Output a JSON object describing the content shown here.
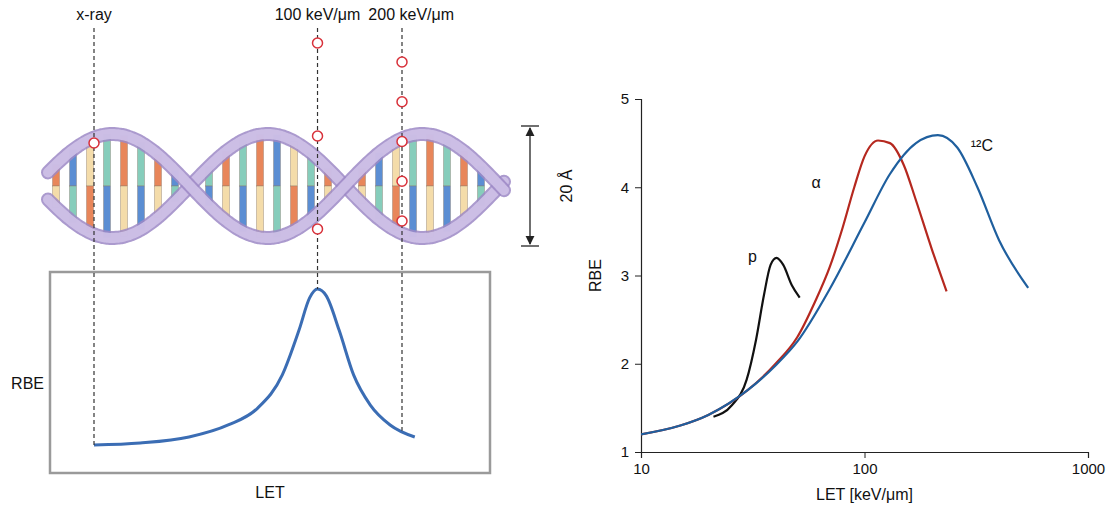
{
  "diagram": {
    "markers": [
      {
        "label": "x-ray",
        "let": 10,
        "ionizations": 1
      },
      {
        "label": "100 keV/μm",
        "let": 60.8,
        "ionizations": 3
      },
      {
        "label": "200 keV/μm",
        "let": 80,
        "ionizations": 5
      }
    ],
    "height_label": "20 Å"
  },
  "chart_data": [
    {
      "type": "line",
      "x_label": "LET",
      "y_label": "RBE",
      "tick_labels": false,
      "x": [
        10.0,
        20.5,
        31.6,
        40.5,
        47.2,
        52.8,
        56.6,
        59.0,
        60.8,
        62.8,
        65.7,
        69.0,
        72.8,
        77.3,
        82.9
      ],
      "series": [
        {
          "values": [
            13.9,
            14.9,
            17.9,
            23.9,
            32.3,
            48.8,
            71.1,
            87.1,
            91.5,
            88.1,
            71.1,
            48.8,
            33.8,
            23.9,
            17.9
          ],
          "color": "#3b6db4"
        }
      ],
      "xlim": [
        0,
        100
      ],
      "ylim": [
        0,
        100
      ]
    },
    {
      "type": "line",
      "x_label": "LET [keV/μm]",
      "y_label": "RBE",
      "log": "x",
      "xlim": [
        10,
        1000
      ],
      "ylim": [
        1,
        5
      ],
      "xticks": [
        10,
        100,
        1000
      ],
      "yticks": [
        1,
        2,
        3,
        4,
        5
      ],
      "series": [
        {
          "name": "p",
          "color": "#111111",
          "x": [
            21.1,
            25.5,
            29.7,
            32.7,
            35.5,
            38,
            40.4,
            43.3,
            47.3,
            51.3
          ],
          "values": [
            1.4,
            1.53,
            1.82,
            2.27,
            2.78,
            3.12,
            3.2,
            3.12,
            2.89,
            2.75
          ]
        },
        {
          "name": "α",
          "color": "#b5281f",
          "x": [
            10,
            15,
            20,
            30,
            40,
            50,
            60,
            70,
            80,
            90,
            100,
            115,
            130,
            150,
            170,
            200,
            233
          ],
          "values": [
            1.2,
            1.3,
            1.42,
            1.7,
            2.0,
            2.3,
            2.7,
            3.1,
            3.55,
            4.0,
            4.35,
            4.53,
            4.5,
            4.25,
            3.85,
            3.3,
            2.82
          ]
        },
        {
          "name": "¹²C",
          "color": "#1f5f9e",
          "x": [
            10,
            15,
            20,
            30,
            40,
            50,
            70,
            100,
            130,
            170,
            213,
            260,
            320,
            400,
            540
          ],
          "values": [
            1.2,
            1.3,
            1.42,
            1.7,
            1.98,
            2.25,
            2.85,
            3.6,
            4.15,
            4.5,
            4.59,
            4.45,
            4.0,
            3.4,
            2.86
          ]
        }
      ]
    }
  ]
}
